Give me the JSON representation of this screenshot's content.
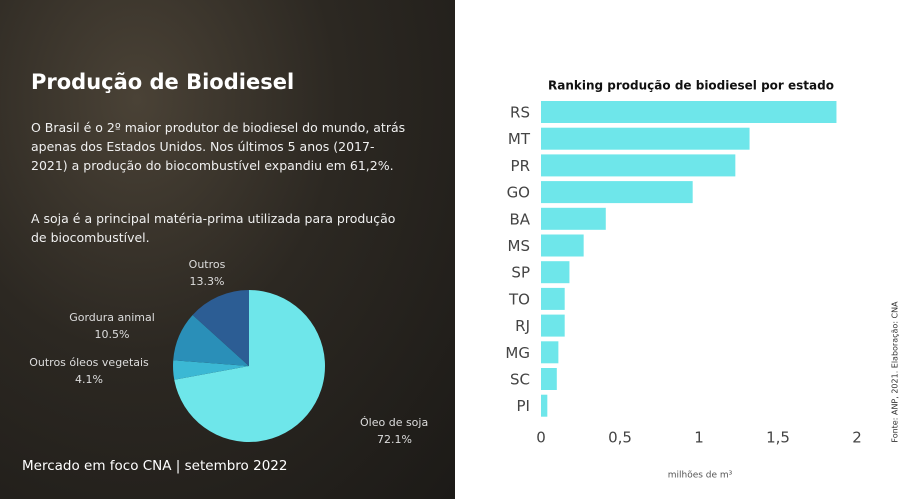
{
  "heading": "Produção de Biodiesel",
  "paragraphs": [
    "O Brasil é o 2º maior produtor de biodiesel do mundo, atrás apenas dos Estados Unidos. Nos últimos 5 anos (2017-2021) a produção do biocombustível expandiu em 61,2%.",
    "A soja é a principal matéria-prima utilizada para produção de biocombustível."
  ],
  "footer": "Mercado em foco CNA | setembro 2022",
  "source": "Fonte: ANP, 2021. Elaboração: CNA",
  "chart_data": [
    {
      "type": "pie",
      "categories": [
        "Óleo de soja",
        "Outros óleos vegetais",
        "Gordura animal",
        "Outros"
      ],
      "values": [
        72.1,
        4.1,
        10.5,
        13.3
      ],
      "value_labels": [
        "72.1%",
        "4.1%",
        "10.5%",
        "13.3%"
      ],
      "colors": [
        "#6ee6ea",
        "#3bb8d4",
        "#2a8fb8",
        "#2c5d94"
      ]
    },
    {
      "type": "hbar",
      "title": "Ranking produção de biodiesel por estado",
      "categories": [
        "RS",
        "MT",
        "PR",
        "GO",
        "BA",
        "MS",
        "SP",
        "TO",
        "RJ",
        "MG",
        "SC",
        "PI"
      ],
      "values": [
        1.87,
        1.32,
        1.23,
        0.96,
        0.41,
        0.27,
        0.18,
        0.15,
        0.15,
        0.11,
        0.1,
        0.04
      ],
      "color": "#6ee6ea",
      "xlabel": "milhões de m³",
      "xlim": [
        0,
        2
      ],
      "xticks": [
        0,
        {
          "value": 0.5,
          "label": "0,5"
        },
        1,
        {
          "value": 1.5,
          "label": "1,5"
        },
        2
      ],
      "grid": false
    }
  ]
}
